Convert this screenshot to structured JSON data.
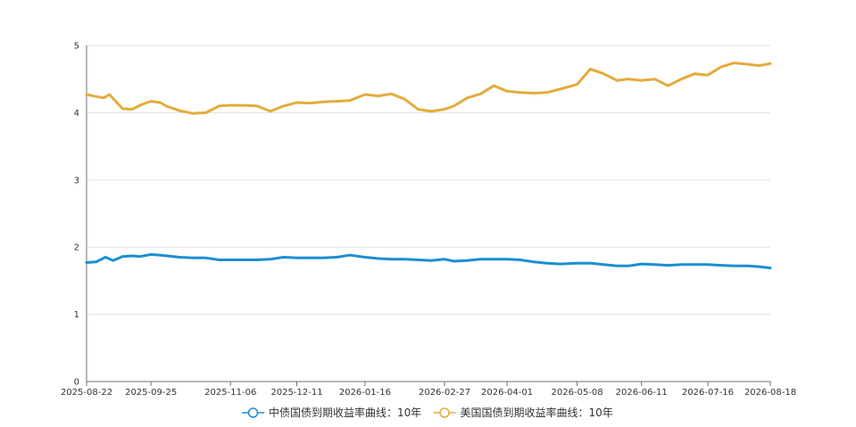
{
  "chart_data": {
    "type": "line",
    "title": "",
    "xlabel": "",
    "ylabel": "",
    "ylim": [
      0,
      5
    ],
    "yticks": [
      "0",
      "1",
      "2",
      "3",
      "4",
      "5"
    ],
    "xticks": [
      "2025-08-22",
      "2025-09-25",
      "2025-11-06",
      "2025-12-11",
      "2026-01-16",
      "2026-02-27",
      "2026-04-01",
      "2026-05-08",
      "2026-06-11",
      "2026-07-16",
      "2026-08-18"
    ],
    "grid": "horizontal",
    "legend_position": "bottom",
    "series": [
      {
        "name": "中债国债到期收益率曲线：10年",
        "color": "#1a8fd1",
        "points": [
          [
            "2025-08-22",
            1.77
          ],
          [
            "2025-08-27",
            1.78
          ],
          [
            "2025-09-01",
            1.85
          ],
          [
            "2025-09-05",
            1.8
          ],
          [
            "2025-09-10",
            1.86
          ],
          [
            "2025-09-15",
            1.87
          ],
          [
            "2025-09-19",
            1.86
          ],
          [
            "2025-09-25",
            1.89
          ],
          [
            "2025-09-30",
            1.88
          ],
          [
            "2025-10-10",
            1.85
          ],
          [
            "2025-10-17",
            1.84
          ],
          [
            "2025-10-24",
            1.84
          ],
          [
            "2025-10-31",
            1.81
          ],
          [
            "2025-11-06",
            1.81
          ],
          [
            "2025-11-13",
            1.81
          ],
          [
            "2025-11-20",
            1.81
          ],
          [
            "2025-11-27",
            1.82
          ],
          [
            "2025-12-04",
            1.85
          ],
          [
            "2025-12-11",
            1.84
          ],
          [
            "2025-12-18",
            1.84
          ],
          [
            "2025-12-25",
            1.84
          ],
          [
            "2026-01-01",
            1.85
          ],
          [
            "2026-01-08",
            1.88
          ],
          [
            "2026-01-16",
            1.85
          ],
          [
            "2026-01-23",
            1.83
          ],
          [
            "2026-01-30",
            1.82
          ],
          [
            "2026-02-06",
            1.82
          ],
          [
            "2026-02-13",
            1.81
          ],
          [
            "2026-02-20",
            1.8
          ],
          [
            "2026-02-27",
            1.82
          ],
          [
            "2026-03-04",
            1.79
          ],
          [
            "2026-03-11",
            1.8
          ],
          [
            "2026-03-18",
            1.82
          ],
          [
            "2026-03-25",
            1.82
          ],
          [
            "2026-04-01",
            1.82
          ],
          [
            "2026-04-08",
            1.81
          ],
          [
            "2026-04-15",
            1.78
          ],
          [
            "2026-04-22",
            1.76
          ],
          [
            "2026-04-29",
            1.75
          ],
          [
            "2026-05-08",
            1.76
          ],
          [
            "2026-05-15",
            1.76
          ],
          [
            "2026-05-22",
            1.74
          ],
          [
            "2026-05-29",
            1.72
          ],
          [
            "2026-06-04",
            1.72
          ],
          [
            "2026-06-11",
            1.75
          ],
          [
            "2026-06-18",
            1.74
          ],
          [
            "2026-06-25",
            1.73
          ],
          [
            "2026-07-02",
            1.74
          ],
          [
            "2026-07-09",
            1.74
          ],
          [
            "2026-07-16",
            1.74
          ],
          [
            "2026-07-23",
            1.73
          ],
          [
            "2026-07-30",
            1.72
          ],
          [
            "2026-08-06",
            1.72
          ],
          [
            "2026-08-12",
            1.71
          ],
          [
            "2026-08-18",
            1.69
          ]
        ]
      },
      {
        "name": "美国国债到期收益率曲线：10年",
        "color": "#e3ac3c",
        "points": [
          [
            "2025-08-22",
            4.27
          ],
          [
            "2025-08-27",
            4.24
          ],
          [
            "2025-08-31",
            4.22
          ],
          [
            "2025-09-03",
            4.27
          ],
          [
            "2025-09-10",
            4.06
          ],
          [
            "2025-09-15",
            4.05
          ],
          [
            "2025-09-20",
            4.12
          ],
          [
            "2025-09-25",
            4.17
          ],
          [
            "2025-09-30",
            4.15
          ],
          [
            "2025-10-03",
            4.1
          ],
          [
            "2025-10-10",
            4.03
          ],
          [
            "2025-10-17",
            3.99
          ],
          [
            "2025-10-24",
            4.0
          ],
          [
            "2025-10-31",
            4.1
          ],
          [
            "2025-11-06",
            4.11
          ],
          [
            "2025-11-13",
            4.11
          ],
          [
            "2025-11-20",
            4.1
          ],
          [
            "2025-11-27",
            4.02
          ],
          [
            "2025-12-04",
            4.1
          ],
          [
            "2025-12-11",
            4.15
          ],
          [
            "2025-12-18",
            4.14
          ],
          [
            "2025-12-25",
            4.16
          ],
          [
            "2026-01-01",
            4.17
          ],
          [
            "2026-01-08",
            4.18
          ],
          [
            "2026-01-16",
            4.27
          ],
          [
            "2026-01-23",
            4.25
          ],
          [
            "2026-01-30",
            4.28
          ],
          [
            "2026-02-06",
            4.2
          ],
          [
            "2026-02-13",
            4.05
          ],
          [
            "2026-02-20",
            4.02
          ],
          [
            "2026-02-27",
            4.05
          ],
          [
            "2026-03-04",
            4.1
          ],
          [
            "2026-03-11",
            4.22
          ],
          [
            "2026-03-18",
            4.28
          ],
          [
            "2026-03-25",
            4.4
          ],
          [
            "2026-04-01",
            4.32
          ],
          [
            "2026-04-08",
            4.3
          ],
          [
            "2026-04-15",
            4.29
          ],
          [
            "2026-04-22",
            4.3
          ],
          [
            "2026-04-29",
            4.35
          ],
          [
            "2026-05-08",
            4.42
          ],
          [
            "2026-05-15",
            4.65
          ],
          [
            "2026-05-22",
            4.58
          ],
          [
            "2026-05-29",
            4.48
          ],
          [
            "2026-06-04",
            4.5
          ],
          [
            "2026-06-11",
            4.48
          ],
          [
            "2026-06-18",
            4.5
          ],
          [
            "2026-06-25",
            4.4
          ],
          [
            "2026-07-02",
            4.5
          ],
          [
            "2026-07-09",
            4.58
          ],
          [
            "2026-07-16",
            4.56
          ],
          [
            "2026-07-23",
            4.68
          ],
          [
            "2026-07-30",
            4.74
          ],
          [
            "2026-08-06",
            4.72
          ],
          [
            "2026-08-12",
            4.7
          ],
          [
            "2026-08-18",
            4.73
          ]
        ]
      }
    ]
  }
}
